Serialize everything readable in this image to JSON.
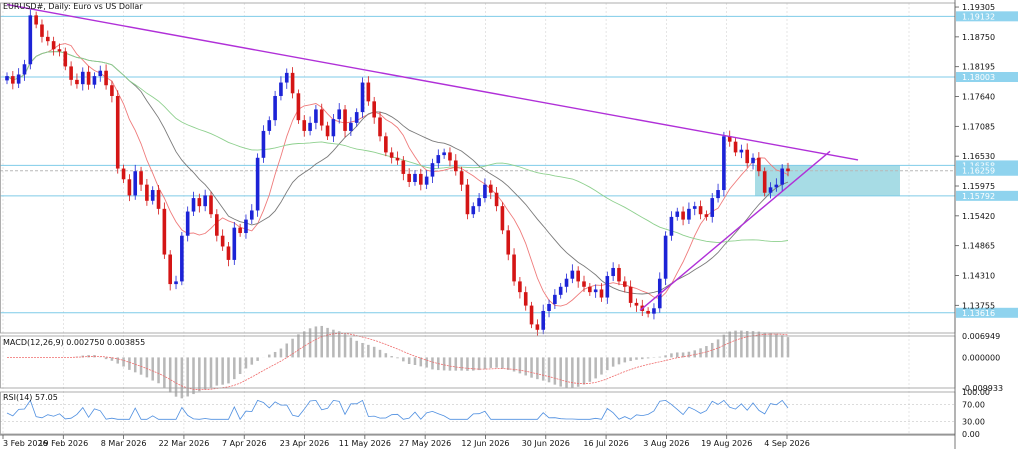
{
  "header": {
    "title": "EURUSD#, Daily:  Euro vs US Dollar"
  },
  "colors": {
    "bull": "#1c23d6",
    "bear": "#d41515",
    "trendline": "#b030d8",
    "hline": "#7fcbe8",
    "price_tag_bg": "#8fd3ee",
    "zone_fill": "#9dd8e2",
    "ma_fast": "#ef7b7b",
    "ma_mid": "#7a7a7a",
    "ma_slow": "#8ed08e",
    "macd_hist": "#b8b8b8",
    "macd_signal": "#ef6b6b",
    "rsi": "#4f8fe0"
  },
  "chart_data": [
    {
      "type": "candlestick",
      "symbol": "EURUSD#",
      "timeframe": "Daily",
      "ylim": [
        1.1324,
        1.1938
      ],
      "y_ticks": [
        "1.19305",
        "1.18750",
        "1.18195",
        "1.17640",
        "1.17085",
        "1.16530",
        "1.15975",
        "1.15420",
        "1.14865",
        "1.14310",
        "1.13755"
      ],
      "x_ticks": [
        "3 Feb 2026",
        "19 Feb 2026",
        "8 Mar 2026",
        "22 Mar 2026",
        "7 Apr 2026",
        "23 Apr 2026",
        "11 May 2026",
        "27 May 2026",
        "12 Jun 2026",
        "30 Jun 2026",
        "16 Jul 2026",
        "3 Aug 2026",
        "19 Aug 2026",
        "4 Sep 2026"
      ],
      "horizontal_levels": [
        {
          "value": 1.19132,
          "label": "1.19132"
        },
        {
          "value": 1.18003,
          "label": "1.18003"
        },
        {
          "value": 1.16358,
          "label": "1.16358"
        },
        {
          "value": 1.16259,
          "label": "1.16259"
        },
        {
          "value": 1.15792,
          "label": "1.15792"
        },
        {
          "value": 1.13616,
          "label": "1.13616"
        }
      ],
      "zone": {
        "from": 1.16358,
        "to": 1.15792
      },
      "series_closes": [
        1.1802,
        1.1788,
        1.1805,
        1.1824,
        1.1915,
        1.1898,
        1.1875,
        1.1867,
        1.1852,
        1.1848,
        1.182,
        1.1795,
        1.1787,
        1.181,
        1.1786,
        1.1802,
        1.1812,
        1.1785,
        1.1765,
        1.163,
        1.161,
        1.158,
        1.1625,
        1.16,
        1.157,
        1.159,
        1.1555,
        1.147,
        1.1415,
        1.142,
        1.1505,
        1.155,
        1.1575,
        1.156,
        1.158,
        1.1545,
        1.1505,
        1.1485,
        1.146,
        1.152,
        1.151,
        1.1535,
        1.1552,
        1.165,
        1.17,
        1.172,
        1.1765,
        1.179,
        1.1808,
        1.177,
        1.172,
        1.17,
        1.1715,
        1.174,
        1.171,
        1.169,
        1.1722,
        1.174,
        1.17,
        1.1715,
        1.1735,
        1.179,
        1.1755,
        1.1725,
        1.169,
        1.166,
        1.165,
        1.1645,
        1.162,
        1.1605,
        1.162,
        1.16,
        1.1615,
        1.164,
        1.1655,
        1.166,
        1.1645,
        1.1625,
        1.16,
        1.1545,
        1.156,
        1.1575,
        1.16,
        1.1585,
        1.156,
        1.1515,
        1.147,
        1.142,
        1.14,
        1.1375,
        1.134,
        1.133,
        1.1365,
        1.1378,
        1.1395,
        1.141,
        1.1425,
        1.144,
        1.142,
        1.141,
        1.14,
        1.1405,
        1.139,
        1.143,
        1.1445,
        1.142,
        1.141,
        1.138,
        1.1375,
        1.1365,
        1.136,
        1.137,
        1.1425,
        1.1505,
        1.154,
        1.155,
        1.1535,
        1.1555,
        1.156,
        1.1545,
        1.154,
        1.1575,
        1.159,
        1.169,
        1.168,
        1.166,
        1.1665,
        1.164,
        1.165,
        1.1625,
        1.1585,
        1.1595,
        1.16,
        1.163,
        1.1625
      ],
      "trendlines": [
        {
          "name": "resistance",
          "from": {
            "x": "3 Feb 2026",
            "y": 1.1935
          },
          "to": {
            "x": "4 Sep 2026",
            "y": 1.165
          }
        },
        {
          "name": "support",
          "from": {
            "x": "16 Jul 2026",
            "y": 1.1366
          },
          "to": {
            "x": "4 Sep 2026",
            "y": 1.1655
          }
        }
      ],
      "moving_averages": [
        {
          "color": "#ef7b7b",
          "role": "fast"
        },
        {
          "color": "#7a7a7a",
          "role": "mid"
        },
        {
          "color": "#8ed08e",
          "role": "slow"
        }
      ]
    },
    {
      "type": "bar",
      "indicator": "MACD",
      "label": "MACD(12,26,9) 0.002750 0.003855",
      "y_ticks": [
        "0.006949",
        "0.000000",
        "-0.009933"
      ],
      "ylim": [
        -0.009933,
        0.006949
      ]
    },
    {
      "type": "line",
      "indicator": "RSI",
      "label": "RSI(14) 57.05",
      "y_ticks": [
        "100.00",
        "70.00",
        "30.00",
        "0.00"
      ],
      "ylim": [
        0,
        100
      ]
    }
  ]
}
